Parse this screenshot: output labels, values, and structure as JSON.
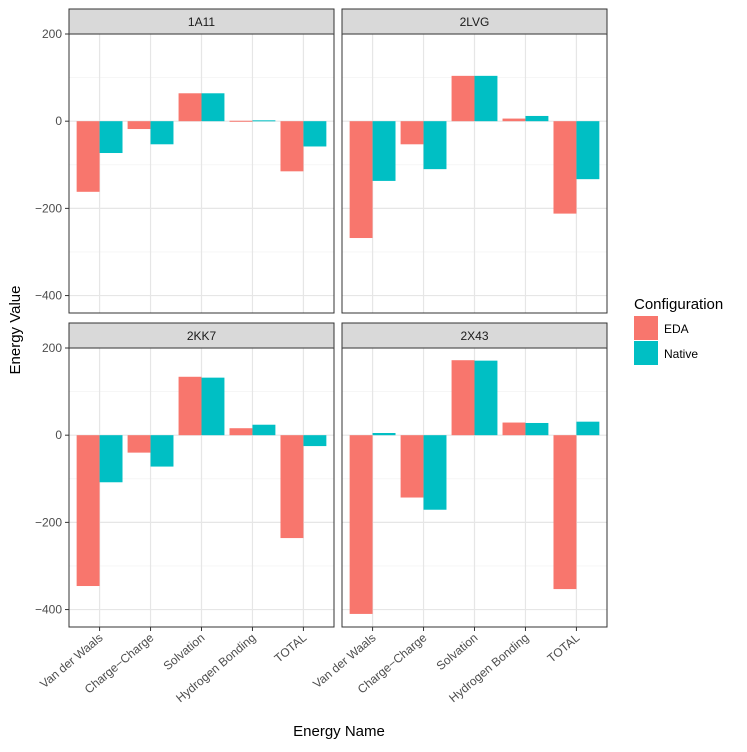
{
  "chart_data": {
    "type": "bar",
    "xlabel": "Energy Name",
    "ylabel": "Energy Value",
    "categories": [
      "Van der Waals",
      "Charge−Charge",
      "Solvation",
      "Hydrogen Bonding",
      "TOTAL"
    ],
    "ylim": [
      -440,
      200
    ],
    "yticks": [
      200,
      0,
      -200,
      -400
    ],
    "ytick_labels": [
      "200",
      "0",
      "−200",
      "−400"
    ],
    "legend": {
      "title": "Configuration",
      "position": "right",
      "entries": [
        {
          "name": "EDA",
          "color": "#F8766D"
        },
        {
          "name": "Native",
          "color": "#00BFC4"
        }
      ]
    },
    "panels": [
      {
        "title": "1A11",
        "series": [
          {
            "name": "EDA",
            "values": [
              -162,
              -18,
              64,
              1,
              -115
            ]
          },
          {
            "name": "Native",
            "values": [
              -73,
              -53,
              64,
              2,
              -58
            ]
          }
        ]
      },
      {
        "title": "2LVG",
        "series": [
          {
            "name": "EDA",
            "values": [
              -268,
              -53,
              104,
              6,
              -212
            ]
          },
          {
            "name": "Native",
            "values": [
              -137,
              -110,
              104,
              12,
              -133
            ]
          }
        ]
      },
      {
        "title": "2KK7",
        "series": [
          {
            "name": "EDA",
            "values": [
              -346,
              -40,
              134,
              16,
              -236
            ]
          },
          {
            "name": "Native",
            "values": [
              -108,
              -72,
              132,
              24,
              -25
            ]
          }
        ]
      },
      {
        "title": "2X43",
        "series": [
          {
            "name": "EDA",
            "values": [
              -410,
              -143,
              172,
              29,
              -353
            ]
          },
          {
            "name": "Native",
            "values": [
              5,
              -171,
              171,
              28,
              31
            ]
          }
        ]
      }
    ]
  }
}
